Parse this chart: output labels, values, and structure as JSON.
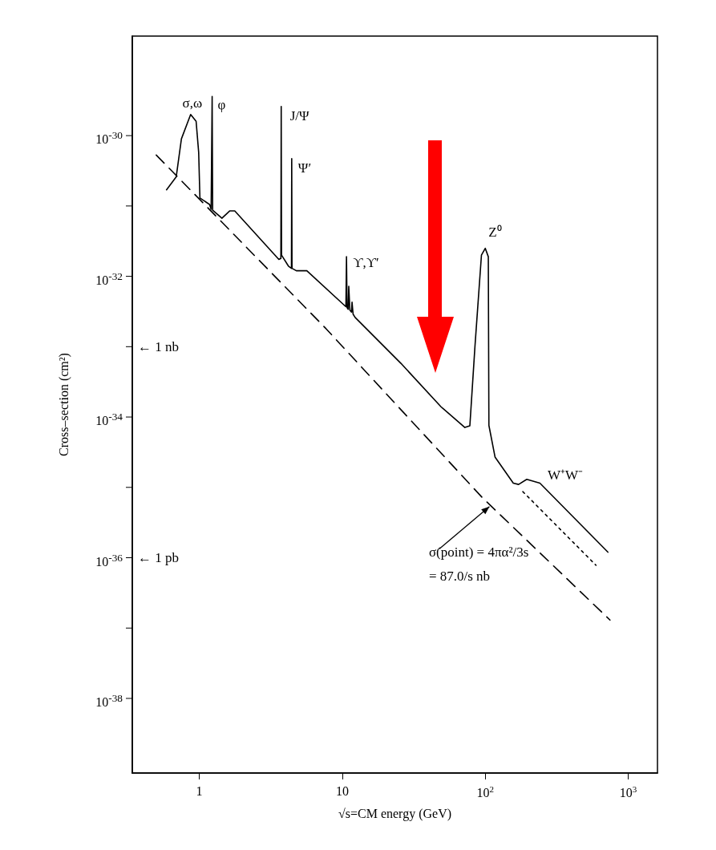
{
  "chart_data": {
    "type": "line",
    "xlabel": "√s=CM energy (GeV)",
    "ylabel": "Cross–section (cm²)",
    "log": "xy",
    "xlim": [
      0.34,
      1600
    ],
    "xticks": [
      1,
      10,
      {
        "value": 100,
        "label": "10$^{2}$"
      },
      {
        "value": 1000,
        "label": "10$^{3}$"
      }
    ],
    "ylim": [
      8.7e-40,
      2.6e-29
    ],
    "yticks": [
      {
        "value": 1e-30,
        "label": "10$^{-30}$"
      },
      {
        "value": 1e-31,
        "label": null
      },
      {
        "value": 1e-32,
        "label": "10$^{-32}$"
      },
      {
        "value": 1e-33,
        "label": null
      },
      {
        "value": 1e-34,
        "label": "10$^{-34}$"
      },
      {
        "value": 1e-35,
        "label": null
      },
      {
        "value": 1e-36,
        "label": "10$^{-36}$"
      },
      {
        "value": 1e-37,
        "label": null
      },
      {
        "value": 1e-38,
        "label": "10$^{-38}$"
      }
    ],
    "grid": false,
    "marker": "none",
    "series": [
      {
        "color": "#000000",
        "line_style": "solid",
        "x": [
          0.59,
          0.69,
          0.75,
          0.87,
          0.95,
          0.99,
          1.01,
          1.18,
          1.21,
          1.23,
          1.24,
          1.44,
          1.63,
          1.77,
          3.6,
          3.72,
          3.74,
          3.76,
          4.2,
          4.41,
          4.43,
          4.45,
          4.77,
          5.65,
          10.6,
          10.7,
          10.8,
          11.0,
          11.1,
          11.3,
          11.6,
          11.7,
          11.9,
          12.3,
          25.7,
          49,
          72,
          78,
          84.6,
          94,
          100,
          105,
          106,
          117,
          157,
          171,
          195,
          241,
          720
        ],
        "values": [
          1.7e-31,
          2.6e-31,
          9e-31,
          2e-30,
          1.6e-30,
          5.8e-31,
          1.3e-31,
          1.05e-31,
          9e-32,
          3.6e-30,
          8.7e-32,
          6.7e-32,
          8.5e-32,
          8.5e-32,
          1.74e-32,
          1.8e-32,
          2.6e-30,
          2e-32,
          1.4e-32,
          1.3e-32,
          4.7e-31,
          1.3e-32,
          1.2e-32,
          1.2e-32,
          3.7e-33,
          1.9e-32,
          3.6e-33,
          3.4e-33,
          7.2e-33,
          3.3e-33,
          3.1e-33,
          4.3e-33,
          2.9e-33,
          2.6e-33,
          5.8e-34,
          1.4e-34,
          7.1e-35,
          7.5e-35,
          9.8e-34,
          2e-32,
          2.5e-32,
          1.9e-32,
          7.6e-35,
          2.7e-35,
          1.15e-35,
          1.1e-35,
          1.3e-35,
          1.15e-35,
          1.2e-36
        ]
      },
      {
        "color": "#000000",
        "line_style": "dashed",
        "x": [
          0.5,
          7.7,
          95,
          745
        ],
        "values": [
          5.3e-31,
          1.8e-33,
          7.2e-36,
          1.3e-37
        ]
      },
      {
        "color": "#000000",
        "line_style": "dotted",
        "x": [
          183,
          595
        ],
        "values": [
          8.7e-36,
          7.8e-37
        ]
      }
    ],
    "annotations": [
      {
        "text": "σ,ω",
        "x": 0.87,
        "y": 2e-30
      },
      {
        "text": "φ",
        "x": 1.23,
        "y": 3.6e-30
      },
      {
        "text": "J/Ψ",
        "x": 3.74,
        "y": 2.6e-30
      },
      {
        "text": "Ψ′",
        "x": 4.43,
        "y": 4.7e-31
      },
      {
        "text": "ϒ,ϒ′",
        "x": 10.7,
        "y": 1.9e-32
      },
      {
        "text": "Z⁰",
        "x": 100,
        "y": 2.5e-32
      },
      {
        "text": "W⁺W⁻",
        "x": 195,
        "y": 1.3e-35
      },
      "← 1 nb",
      "← 1 pb",
      {
        "text": "σ(point) = 4πα²/3s\n= 87.0/s nb",
        "x": 109,
        "y": 5.5e-36
      }
    ]
  }
}
